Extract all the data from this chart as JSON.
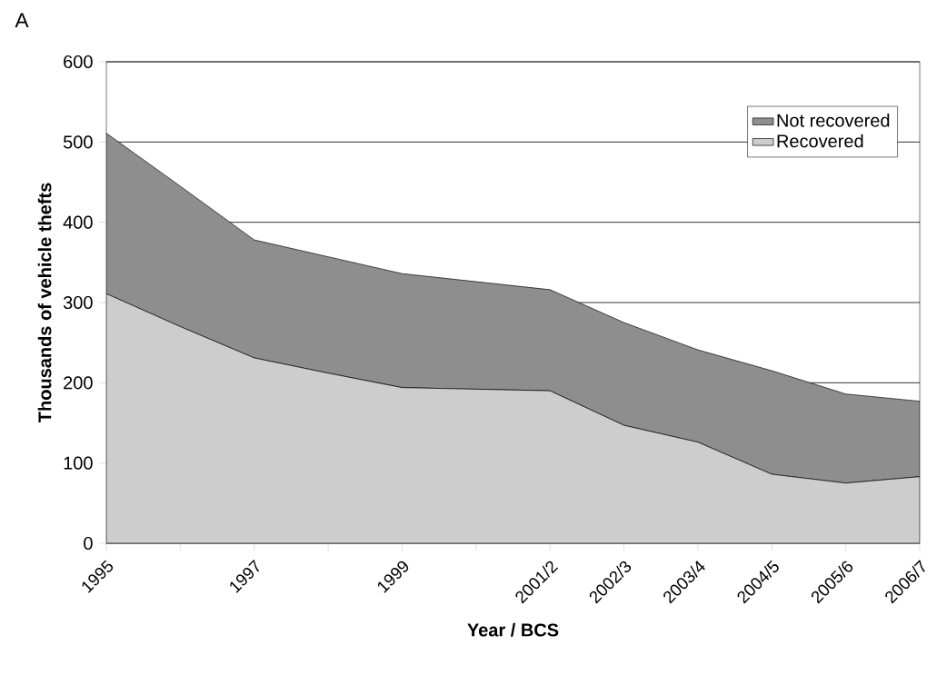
{
  "chart_data": {
    "type": "area",
    "stacked": true,
    "xlabel": "Year / BCS",
    "ylabel": "Thousands of vehicle thefts",
    "annotations": [
      "A"
    ],
    "categories": [
      "1995",
      null,
      "1997",
      null,
      "1999",
      null,
      "2001/2",
      "2002/3",
      "2003/4",
      "2004/5",
      "2005/6",
      "2006/7"
    ],
    "series": [
      {
        "name": "Recovered",
        "color": "#cdcdcd",
        "values": [
          311,
          270,
          231,
          212,
          194,
          192,
          190,
          147,
          126,
          86,
          75,
          83
        ]
      },
      {
        "name": "Not recovered",
        "color": "#8e8e8e",
        "values": [
          200,
          175,
          147,
          145,
          142,
          134,
          126,
          128,
          115,
          129,
          111,
          94
        ]
      }
    ],
    "ylim": [
      0,
      600
    ],
    "yticks": [
      0,
      100,
      200,
      300,
      400,
      500,
      600
    ],
    "grid": "y",
    "legend": "top right"
  }
}
